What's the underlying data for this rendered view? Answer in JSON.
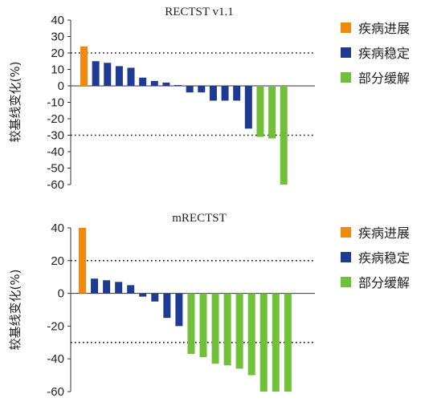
{
  "colors": {
    "progression": "#F08A0C",
    "stable": "#1F3A93",
    "response": "#72BF3A"
  },
  "legend": [
    {
      "key": "progression",
      "label": "疾病进展"
    },
    {
      "key": "stable",
      "label": "疾病稳定"
    },
    {
      "key": "response",
      "label": "部分缓解"
    }
  ],
  "chart_data": [
    {
      "type": "bar",
      "title": "RECTST v1.1",
      "ylabel": "较基线变化(%)",
      "ylim": [
        -60,
        40
      ],
      "yticks": [
        40,
        30,
        20,
        10,
        0,
        -10,
        -20,
        -30,
        -40,
        -50,
        -60
      ],
      "reference_lines": [
        20,
        -30
      ],
      "values": [
        24,
        15,
        14,
        12,
        11,
        5,
        3,
        2,
        0.5,
        -4,
        -4,
        -9,
        -9,
        -9,
        -26,
        -31,
        -32,
        -60
      ],
      "groups": [
        "progression",
        "stable",
        "stable",
        "stable",
        "stable",
        "stable",
        "stable",
        "stable",
        "stable",
        "stable",
        "stable",
        "stable",
        "stable",
        "stable",
        "stable",
        "response",
        "response",
        "response"
      ]
    },
    {
      "type": "bar",
      "title": "mRECTST",
      "ylabel": "较基线变化(%)",
      "ylim": [
        -60,
        40
      ],
      "yticks": [
        40,
        20,
        0,
        -20,
        -40,
        -60
      ],
      "reference_lines": [
        20,
        -30
      ],
      "values": [
        40,
        9,
        8,
        7,
        5,
        -2,
        -5,
        -15,
        -20,
        -37,
        -39,
        -43,
        -44,
        -46,
        -50,
        -60,
        -60,
        -60
      ],
      "groups": [
        "progression",
        "stable",
        "stable",
        "stable",
        "stable",
        "stable",
        "stable",
        "stable",
        "stable",
        "response",
        "response",
        "response",
        "response",
        "response",
        "response",
        "response",
        "response",
        "response"
      ]
    }
  ]
}
